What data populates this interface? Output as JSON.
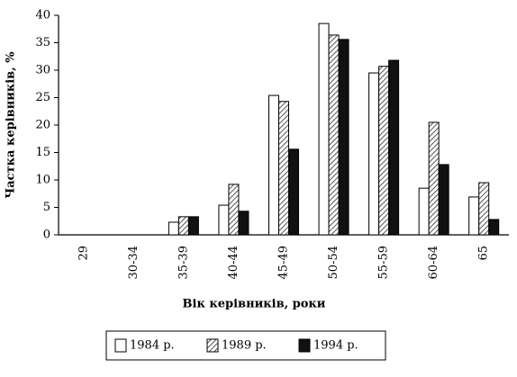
{
  "chart_data": {
    "type": "bar",
    "x_label": "Вік керівників, роки",
    "y_label": "Частка керівників, %",
    "categories": [
      "29",
      "30-34",
      "35-39",
      "40-44",
      "45-49",
      "50-54",
      "55-59",
      "60-64",
      "65"
    ],
    "series": [
      {
        "name": "1984 р.",
        "color": "#ffffff",
        "values": [
          0,
          0,
          2.3,
          5.4,
          25.4,
          38.5,
          29.5,
          8.5,
          6.9
        ]
      },
      {
        "name": "1989 р.",
        "color": "#555555",
        "pattern": "hatch",
        "values": [
          0,
          0,
          3.3,
          9.2,
          24.3,
          36.4,
          30.7,
          20.5,
          9.5
        ]
      },
      {
        "name": "1994 р.",
        "color": "#111111",
        "values": [
          0,
          0,
          3.3,
          4.3,
          15.6,
          35.6,
          31.8,
          12.8,
          2.8
        ]
      }
    ],
    "ylim": [
      0,
      40
    ],
    "yticks": [
      0,
      5,
      10,
      15,
      20,
      25,
      30,
      35,
      40
    ],
    "legend": "bottom"
  }
}
